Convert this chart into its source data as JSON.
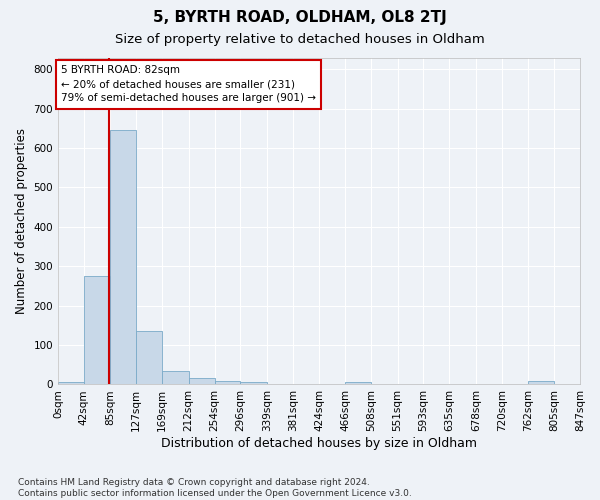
{
  "title1": "5, BYRTH ROAD, OLDHAM, OL8 2TJ",
  "title2": "Size of property relative to detached houses in Oldham",
  "xlabel": "Distribution of detached houses by size in Oldham",
  "ylabel": "Number of detached properties",
  "footnote": "Contains HM Land Registry data © Crown copyright and database right 2024.\nContains public sector information licensed under the Open Government Licence v3.0.",
  "bin_edges": [
    0,
    42,
    85,
    127,
    169,
    212,
    254,
    296,
    339,
    381,
    424,
    466,
    508,
    551,
    593,
    635,
    678,
    720,
    762,
    805,
    847
  ],
  "bin_labels": [
    "0sqm",
    "42sqm",
    "85sqm",
    "127sqm",
    "169sqm",
    "212sqm",
    "254sqm",
    "296sqm",
    "339sqm",
    "381sqm",
    "424sqm",
    "466sqm",
    "508sqm",
    "551sqm",
    "593sqm",
    "635sqm",
    "678sqm",
    "720sqm",
    "762sqm",
    "805sqm",
    "847sqm"
  ],
  "bar_heights": [
    5,
    275,
    645,
    135,
    33,
    16,
    10,
    6,
    0,
    0,
    0,
    6,
    0,
    0,
    0,
    0,
    0,
    0,
    8,
    0
  ],
  "bar_color": "#c8d8e8",
  "bar_edge_color": "#7aaac8",
  "property_line_x": 82,
  "annotation_text": "5 BYRTH ROAD: 82sqm\n← 20% of detached houses are smaller (231)\n79% of semi-detached houses are larger (901) →",
  "annotation_box_color": "#ffffff",
  "annotation_box_edge": "#cc0000",
  "vline_color": "#cc0000",
  "ylim": [
    0,
    830
  ],
  "yticks": [
    0,
    100,
    200,
    300,
    400,
    500,
    600,
    700,
    800
  ],
  "background_color": "#eef2f7",
  "plot_bg_color": "#eef2f7",
  "grid_color": "#ffffff",
  "title1_fontsize": 11,
  "title2_fontsize": 9.5,
  "xlabel_fontsize": 9,
  "ylabel_fontsize": 8.5,
  "tick_fontsize": 7.5,
  "footnote_fontsize": 6.5
}
